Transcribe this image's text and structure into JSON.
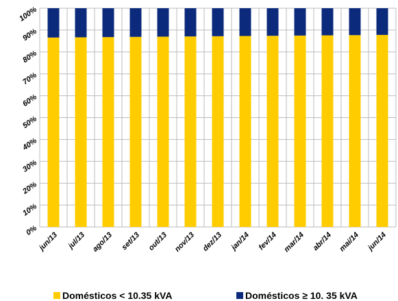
{
  "chart_data": {
    "type": "bar",
    "stacked": true,
    "categories": [
      "jun/13",
      "jul/13",
      "ago/13",
      "set/13",
      "out/13",
      "nov/13",
      "dez/13",
      "jan/14",
      "fev/14",
      "mar/14",
      "abr/14",
      "mai/14",
      "jun/14"
    ],
    "series": [
      {
        "name": "Domésticos < 10.35 kVA",
        "color": "#ffcc00",
        "values": [
          86.6,
          86.7,
          86.8,
          86.9,
          87.0,
          87.1,
          87.2,
          87.3,
          87.4,
          87.5,
          87.6,
          87.7,
          87.8
        ]
      },
      {
        "name": "Domésticos ≥ 10. 35 kVA",
        "color": "#0b2a7c",
        "values": [
          13.4,
          13.3,
          13.2,
          13.1,
          13.0,
          12.9,
          12.8,
          12.7,
          12.6,
          12.5,
          12.4,
          12.3,
          12.2
        ]
      }
    ],
    "ylim": [
      0,
      100
    ],
    "yticks": [
      {
        "value": 0,
        "label": "0%"
      },
      {
        "value": 10,
        "label": "10%"
      },
      {
        "value": 20,
        "label": "20%"
      },
      {
        "value": 30,
        "label": "30%"
      },
      {
        "value": 40,
        "label": "40%"
      },
      {
        "value": 50,
        "label": "50%"
      },
      {
        "value": 60,
        "label": "60%"
      },
      {
        "value": 70,
        "label": "70%"
      },
      {
        "value": 80,
        "label": "80%"
      },
      {
        "value": 90,
        "label": "90%"
      },
      {
        "value": 100,
        "label": "100%"
      }
    ],
    "grid": true,
    "legend": "bottom"
  }
}
